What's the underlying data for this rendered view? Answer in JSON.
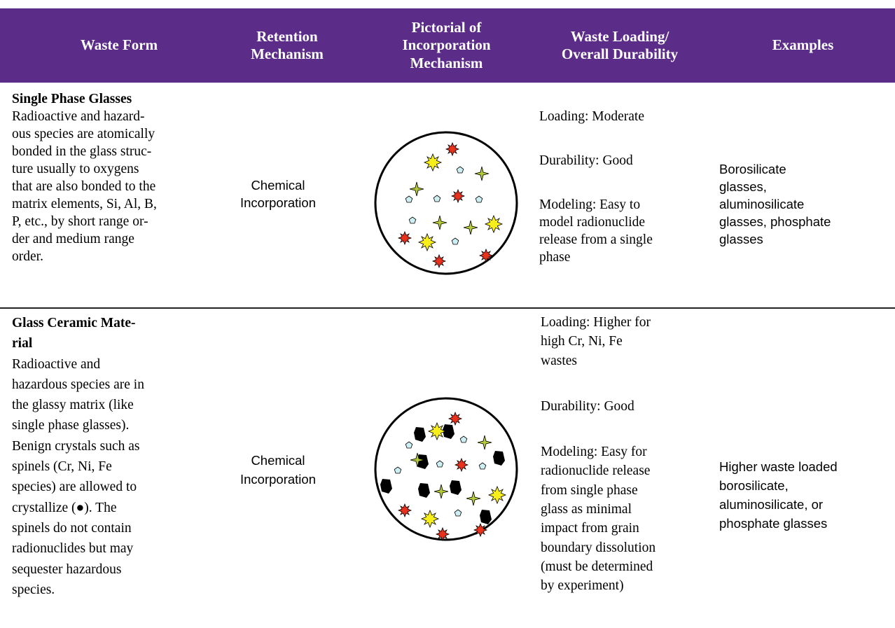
{
  "header": {
    "columns": [
      [
        "Waste Form"
      ],
      [
        "Retention",
        "Mechanism"
      ],
      [
        "Pictorial of",
        "Incorporation",
        "Mechanism"
      ],
      [
        "Waste Loading/",
        "Overall Durability"
      ],
      [
        "Examples"
      ]
    ]
  },
  "rows": [
    {
      "waste_form": {
        "title": [
          "Single Phase Glasses"
        ],
        "description": [
          "Radioactive and hazard-",
          "ous species are atomically",
          "bonded in the glass struc-",
          "ture usually to oxygens",
          "that are also bonded to the",
          "matrix elements, Si, Al, B,",
          "P, etc., by short range or-",
          "der and medium range",
          "order."
        ]
      },
      "retention": [
        "Chemical",
        "Incorporation"
      ],
      "loading": {
        "loading": [
          "Loading: Moderate"
        ],
        "durability": [
          "Durability: Good"
        ],
        "modeling": [
          "Modeling: Easy to",
          "model radionuclide",
          "release from a single",
          "phase"
        ]
      },
      "examples": [
        " Borosilicate",
        "glasses,",
        "aluminosilicate",
        "glasses, phosphate",
        "glasses"
      ]
    },
    {
      "waste_form": {
        "title": [
          "Glass Ceramic Mate-",
          "rial"
        ],
        "description": [
          "Radioactive and",
          "hazardous species are in",
          "the glassy matrix (like",
          "single phase glasses).",
          "Benign crystals such as",
          "spinels (Cr, Ni, Fe",
          "species) are allowed to",
          "crystallize (●). The",
          "spinels do not contain",
          "radionuclides but may",
          "sequester hazardous",
          "species."
        ]
      },
      "retention": [
        "Chemical",
        "Incorporation"
      ],
      "loading": {
        "loading": [
          "Loading: Higher for",
          "high Cr, Ni, Fe",
          "wastes"
        ],
        "durability": [
          "Durability: Good"
        ],
        "modeling": [
          "Modeling: Easy for",
          "radionuclide release",
          "from single phase",
          "glass as minimal",
          "impact from grain",
          "boundary dissolution",
          "(must be determined",
          "by experiment)"
        ]
      },
      "examples": [
        "Higher waste loaded",
        "borosilicate,",
        "aluminosilicate, or",
        "phosphate glasses"
      ]
    }
  ]
}
